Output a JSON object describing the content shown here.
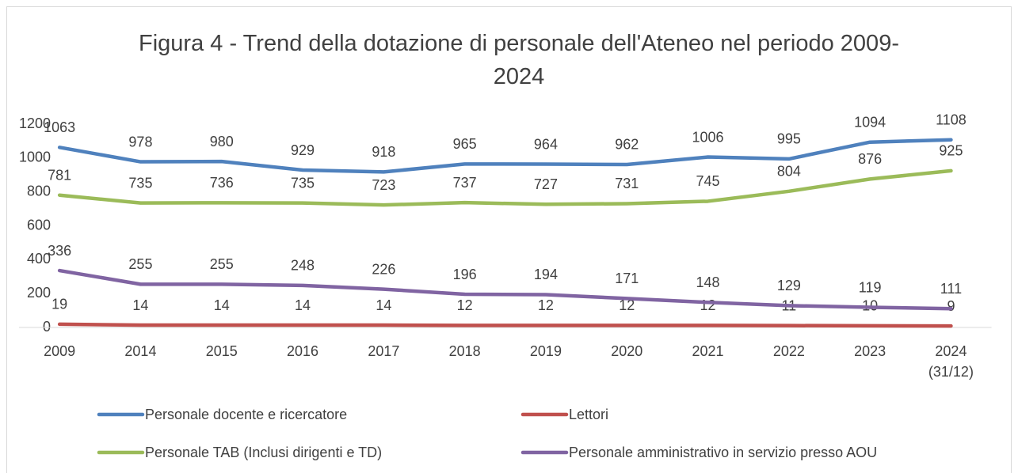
{
  "chart_data": {
    "type": "line",
    "title": "Figura 4 - Trend della dotazione di personale dell'Ateneo nel periodo 2009-2024",
    "categories": [
      "2009",
      "2014",
      "2015",
      "2016",
      "2017",
      "2018",
      "2019",
      "2020",
      "2021",
      "2022",
      "2023",
      "2024 (31/12)"
    ],
    "series": [
      {
        "name": "Personale docente e ricercatore",
        "color": "#4f81bd",
        "values": [
          1063,
          978,
          980,
          929,
          918,
          965,
          964,
          962,
          1006,
          995,
          1094,
          1108
        ]
      },
      {
        "name": "Lettori",
        "color": "#c0504d",
        "values": [
          19,
          14,
          14,
          14,
          14,
          12,
          12,
          12,
          12,
          11,
          10,
          9
        ]
      },
      {
        "name": "Personale TAB (Inclusi dirigenti e TD)",
        "color": "#9bbb59",
        "values": [
          781,
          735,
          736,
          735,
          723,
          737,
          727,
          731,
          745,
          804,
          876,
          925
        ]
      },
      {
        "name": "Personale amministrativo in servizio presso AOU",
        "color": "#8064a2",
        "values": [
          336,
          255,
          255,
          248,
          226,
          196,
          194,
          171,
          148,
          129,
          119,
          111
        ]
      }
    ],
    "ylim": [
      0,
      1200
    ],
    "yticks": [
      0,
      200,
      400,
      600,
      800,
      1000,
      1200
    ],
    "grid": false,
    "legend": "bottom"
  }
}
